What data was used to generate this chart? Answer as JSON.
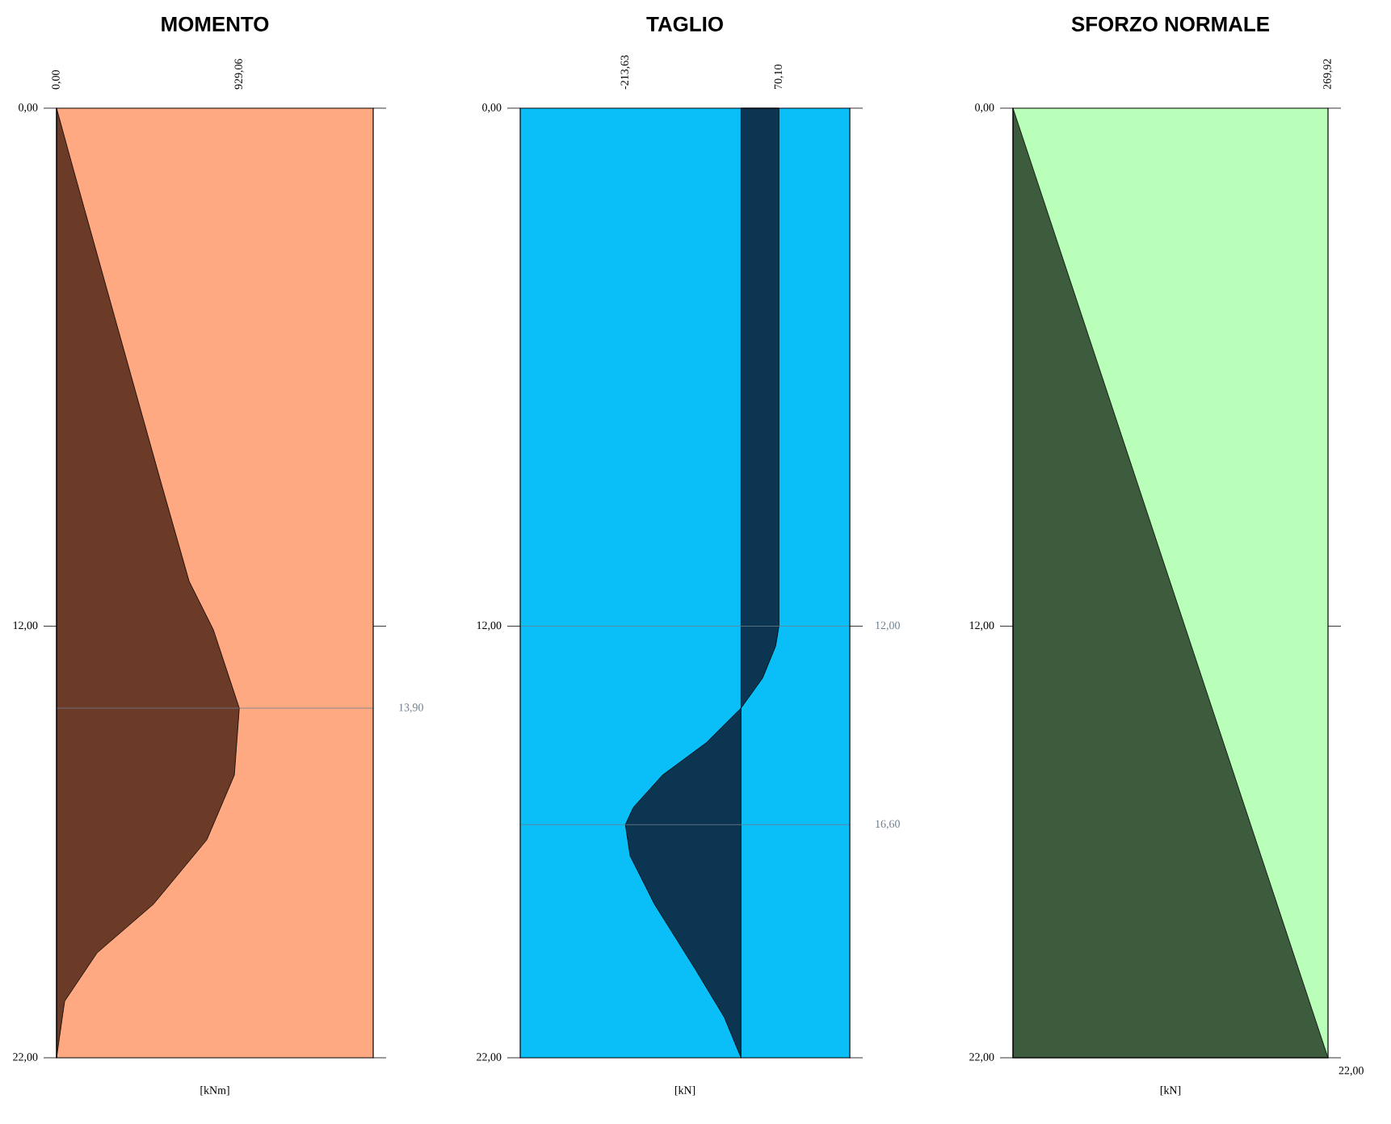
{
  "chart_data": [
    {
      "type": "area",
      "orientation": "horizontal",
      "title": "MOMENTO",
      "xlabel": "[kNm]",
      "color": "#6b3b28",
      "x": [
        0,
        1.23,
        4.98,
        8.72,
        10.96,
        12.08,
        13.9,
        15.45,
        16.95,
        18.44,
        19.57,
        20.69,
        22
      ],
      "values": [
        0,
        74,
        304,
        534,
        674,
        797,
        929.06,
        904,
        764,
        493,
        206,
        41,
        0
      ],
      "xlim": [
        0,
        1610
      ],
      "xticks": [
        {
          "value": 0,
          "label": "0,00"
        },
        {
          "value": 929.06,
          "label": "929,06"
        }
      ],
      "ylim": [
        22,
        0
      ],
      "yticks": [
        {
          "value": 0,
          "label": "0,00"
        },
        {
          "value": 12,
          "label": "12,00"
        },
        {
          "value": 22,
          "label": "22,00"
        }
      ],
      "ref_lines": [
        {
          "axis": "y",
          "value": 13.9,
          "label": "13,90",
          "color": "#6e7f8f"
        }
      ]
    },
    {
      "type": "area",
      "orientation": "horizontal",
      "title": "TAGLIO",
      "xlabel": "[kN]",
      "color": "#0b3550",
      "x": [
        0,
        12,
        12.46,
        13.2,
        13.9,
        14.7,
        15.45,
        16.2,
        16.6,
        17.32,
        18.44,
        19.94,
        21.06,
        22
      ],
      "values": [
        70.1,
        70.1,
        64,
        40,
        0,
        -64,
        -145,
        -199,
        -213.63,
        -205,
        -160,
        -85,
        -31,
        0
      ],
      "xlim": [
        -408,
        201
      ],
      "xticks": [
        {
          "value": -213.63,
          "label": "-213,63"
        },
        {
          "value": 70.1,
          "label": "70,10"
        }
      ],
      "ylim": [
        22,
        0
      ],
      "yticks": [
        {
          "value": 0,
          "label": "0,00"
        },
        {
          "value": 12,
          "label": "12,00"
        },
        {
          "value": 22,
          "label": "22,00"
        }
      ],
      "ref_lines": [
        {
          "axis": "y",
          "value": 12,
          "label": "12,00",
          "color": "#6e7f8f"
        },
        {
          "axis": "y",
          "value": 16.6,
          "label": "16,60",
          "color": "#6e7f8f"
        }
      ]
    },
    {
      "type": "area",
      "orientation": "horizontal",
      "title": "SFORZO NORMALE",
      "xlabel": "[kN]",
      "color": "#3d5c3d",
      "x": [
        0,
        22
      ],
      "values": [
        0,
        269.92
      ],
      "xlim": [
        0,
        269.92
      ],
      "xticks": [
        {
          "value": 0,
          "label": null
        },
        {
          "value": 269.92,
          "label": "269,92"
        }
      ],
      "ylim": [
        22,
        0
      ],
      "yticks": [
        {
          "value": 0,
          "label": "0,00"
        },
        {
          "value": 12,
          "label": "12,00"
        },
        {
          "value": 22,
          "label": "22,00"
        }
      ],
      "annotations": [
        {
          "text": "22,00",
          "x": 269.92,
          "y": 22
        }
      ]
    }
  ]
}
